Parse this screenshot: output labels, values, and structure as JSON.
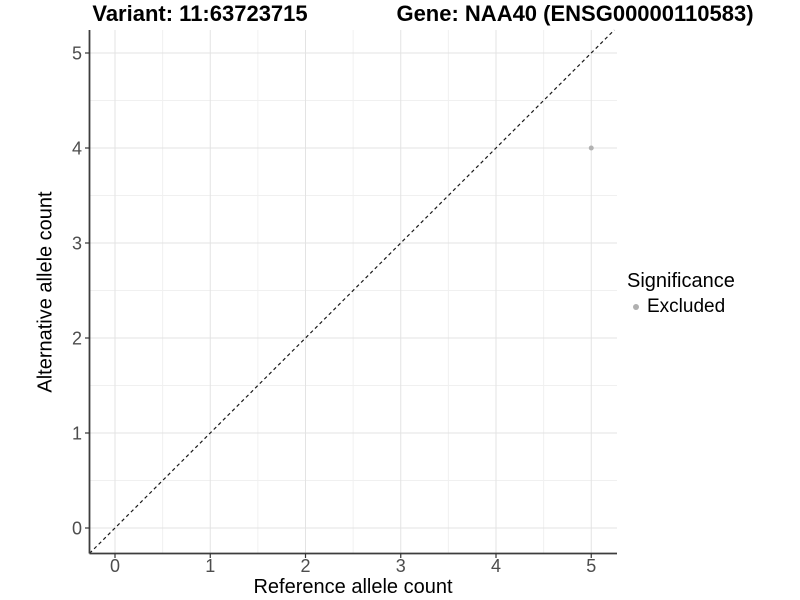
{
  "header": {
    "variant_title": "Variant: 11:63723715",
    "gene_title": "Gene: NAA40 (ENSG00000110583)"
  },
  "legend": {
    "title": "Significance",
    "items": [
      {
        "label": "Excluded",
        "color": "#b0b0b0",
        "marker": "circle-icon"
      }
    ]
  },
  "chart_data": {
    "type": "scatter",
    "title": "Variant: 11:63723715  |  Gene: NAA40 (ENSG00000110583)",
    "xlabel": "Reference allele count",
    "ylabel": "Alternative allele count",
    "xticks": [
      0,
      1,
      2,
      3,
      4,
      5
    ],
    "yticks": [
      0,
      1,
      2,
      3,
      4,
      5
    ],
    "xlim": [
      -0.27,
      5.27
    ],
    "ylim": [
      -0.27,
      5.25
    ],
    "grid": true,
    "grid_minor": true,
    "legend_position": "right",
    "series": [
      {
        "name": "Excluded",
        "color": "#b2b2b2",
        "points": [
          {
            "x": 5,
            "y": 4
          }
        ]
      }
    ],
    "reference_line": {
      "type": "identity",
      "style": "dashed",
      "color": "#1a1a1a"
    }
  }
}
